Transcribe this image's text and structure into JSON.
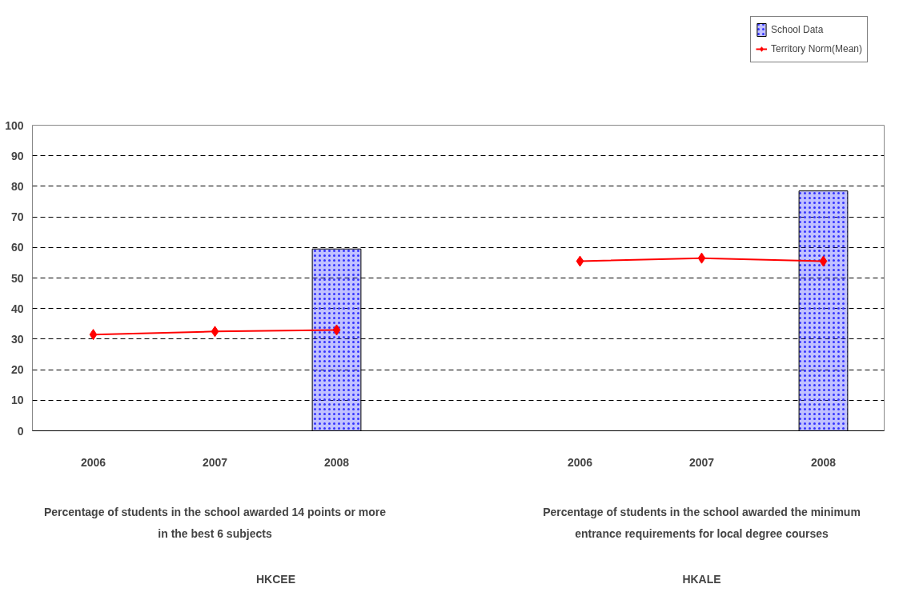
{
  "chart_data": {
    "type": "bar",
    "categories": [
      "2006",
      "2007",
      "2008",
      null,
      "2006",
      "2007",
      "2008"
    ],
    "series": [
      {
        "name": "School Data",
        "color": "#3333ff",
        "values": [
          null,
          null,
          59.5,
          null,
          null,
          null,
          78.5
        ]
      },
      {
        "name": "Territory Norm(Mean)",
        "type": "line",
        "color": "#ff0000",
        "marker": "diamond",
        "values": [
          31.5,
          32.5,
          33,
          null,
          55.5,
          56.5,
          55.5
        ]
      }
    ],
    "ylim": [
      0,
      100
    ],
    "yticks": [
      0,
      10,
      20,
      30,
      40,
      50,
      60,
      70,
      80,
      90,
      100
    ],
    "grid": "y",
    "legend": "top right",
    "annotations": [
      "Percentage of students in the school awarded 14 points or more\nin the best 6 subjects",
      "Percentage of students in the school awarded the minimum\nentrance requirements for local degree courses",
      "HKCEE",
      "HKALE"
    ]
  }
}
